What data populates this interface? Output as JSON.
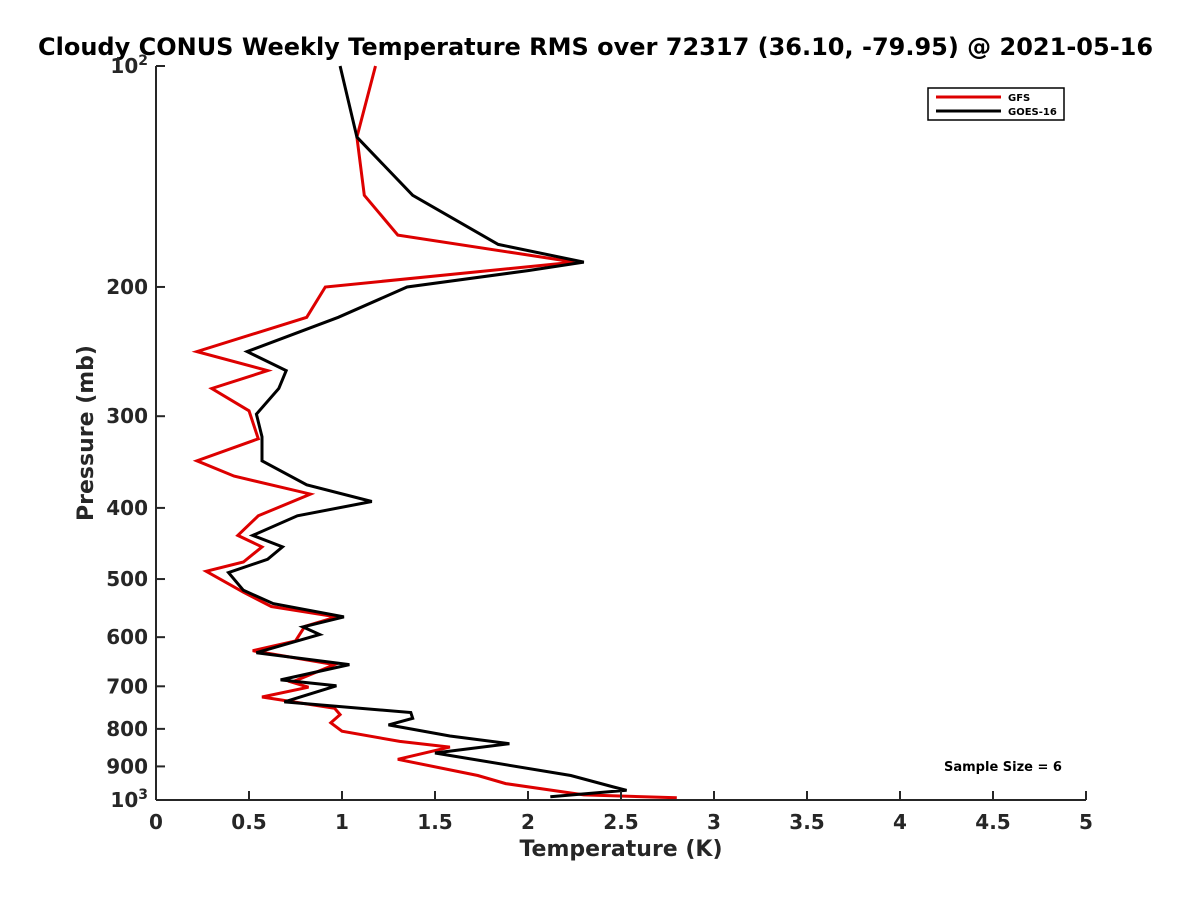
{
  "chart_data": {
    "type": "line",
    "title": "Cloudy CONUS Weekly Temperature RMS over 72317 (36.10, -79.95) @ 2021-05-16",
    "xlabel": "Temperature (K)",
    "ylabel": "Pressure (mb)",
    "xlim": [
      0,
      5
    ],
    "ylim": [
      100,
      1000
    ],
    "y_scale": "log",
    "y_reversed": true,
    "grid": false,
    "legend_position": "top-right",
    "x_ticks": [
      "0",
      "0.5",
      "1",
      "1.5",
      "2",
      "2.5",
      "3",
      "3.5",
      "4",
      "4.5",
      "5"
    ],
    "y_ticks": [
      {
        "value": 100,
        "base": "10",
        "exp": "2"
      },
      {
        "value": 200,
        "label": "200"
      },
      {
        "value": 300,
        "label": "300"
      },
      {
        "value": 400,
        "label": "400"
      },
      {
        "value": 500,
        "label": "500"
      },
      {
        "value": 600,
        "label": "600"
      },
      {
        "value": 700,
        "label": "700"
      },
      {
        "value": 800,
        "label": "800"
      },
      {
        "value": 900,
        "label": "900"
      },
      {
        "value": 1000,
        "base": "10",
        "exp": "3"
      }
    ],
    "annotation": "Sample Size = 6",
    "series": [
      {
        "name": "GFS",
        "color": "#dd0000",
        "points": [
          [
            1.18,
            100
          ],
          [
            1.08,
            125
          ],
          [
            1.12,
            150
          ],
          [
            1.3,
            170
          ],
          [
            2.25,
            185
          ],
          [
            0.91,
            200
          ],
          [
            0.81,
            220
          ],
          [
            0.22,
            245
          ],
          [
            0.6,
            260
          ],
          [
            0.3,
            275
          ],
          [
            0.5,
            295
          ],
          [
            0.55,
            322
          ],
          [
            0.22,
            345
          ],
          [
            0.42,
            362
          ],
          [
            0.83,
            383
          ],
          [
            0.55,
            410
          ],
          [
            0.44,
            436
          ],
          [
            0.57,
            452
          ],
          [
            0.47,
            474
          ],
          [
            0.27,
            488
          ],
          [
            0.47,
            521
          ],
          [
            0.62,
            545
          ],
          [
            0.97,
            563
          ],
          [
            0.8,
            580
          ],
          [
            0.75,
            607
          ],
          [
            0.52,
            626
          ],
          [
            0.96,
            654
          ],
          [
            0.73,
            691
          ],
          [
            0.82,
            702
          ],
          [
            0.57,
            724
          ],
          [
            0.96,
            750
          ],
          [
            0.99,
            765
          ],
          [
            0.94,
            785
          ],
          [
            1.0,
            806
          ],
          [
            1.31,
            832
          ],
          [
            1.58,
            847
          ],
          [
            1.3,
            880
          ],
          [
            1.73,
            926
          ],
          [
            1.88,
            950
          ],
          [
            2.3,
            984
          ],
          [
            2.8,
            993
          ]
        ]
      },
      {
        "name": "GOES-16",
        "color": "#000000",
        "points": [
          [
            0.99,
            100
          ],
          [
            1.08,
            125
          ],
          [
            1.38,
            150
          ],
          [
            1.84,
            175
          ],
          [
            2.3,
            185
          ],
          [
            2.0,
            190
          ],
          [
            1.35,
            200
          ],
          [
            0.98,
            220
          ],
          [
            0.49,
            245
          ],
          [
            0.7,
            260
          ],
          [
            0.66,
            275
          ],
          [
            0.54,
            298
          ],
          [
            0.57,
            320
          ],
          [
            0.57,
            345
          ],
          [
            0.81,
            372
          ],
          [
            1.16,
            392
          ],
          [
            0.76,
            410
          ],
          [
            0.52,
            436
          ],
          [
            0.68,
            452
          ],
          [
            0.6,
            470
          ],
          [
            0.39,
            490
          ],
          [
            0.47,
            518
          ],
          [
            0.63,
            540
          ],
          [
            1.01,
            563
          ],
          [
            0.79,
            581
          ],
          [
            0.88,
            595
          ],
          [
            0.54,
            630
          ],
          [
            1.04,
            654
          ],
          [
            0.67,
            686
          ],
          [
            0.97,
            699
          ],
          [
            0.69,
            735
          ],
          [
            1.37,
            760
          ],
          [
            1.38,
            774
          ],
          [
            1.25,
            790
          ],
          [
            1.58,
            818
          ],
          [
            1.9,
            838
          ],
          [
            1.5,
            863
          ],
          [
            2.23,
            926
          ],
          [
            2.46,
            960
          ],
          [
            2.53,
            970
          ],
          [
            2.12,
            990
          ]
        ]
      }
    ]
  }
}
